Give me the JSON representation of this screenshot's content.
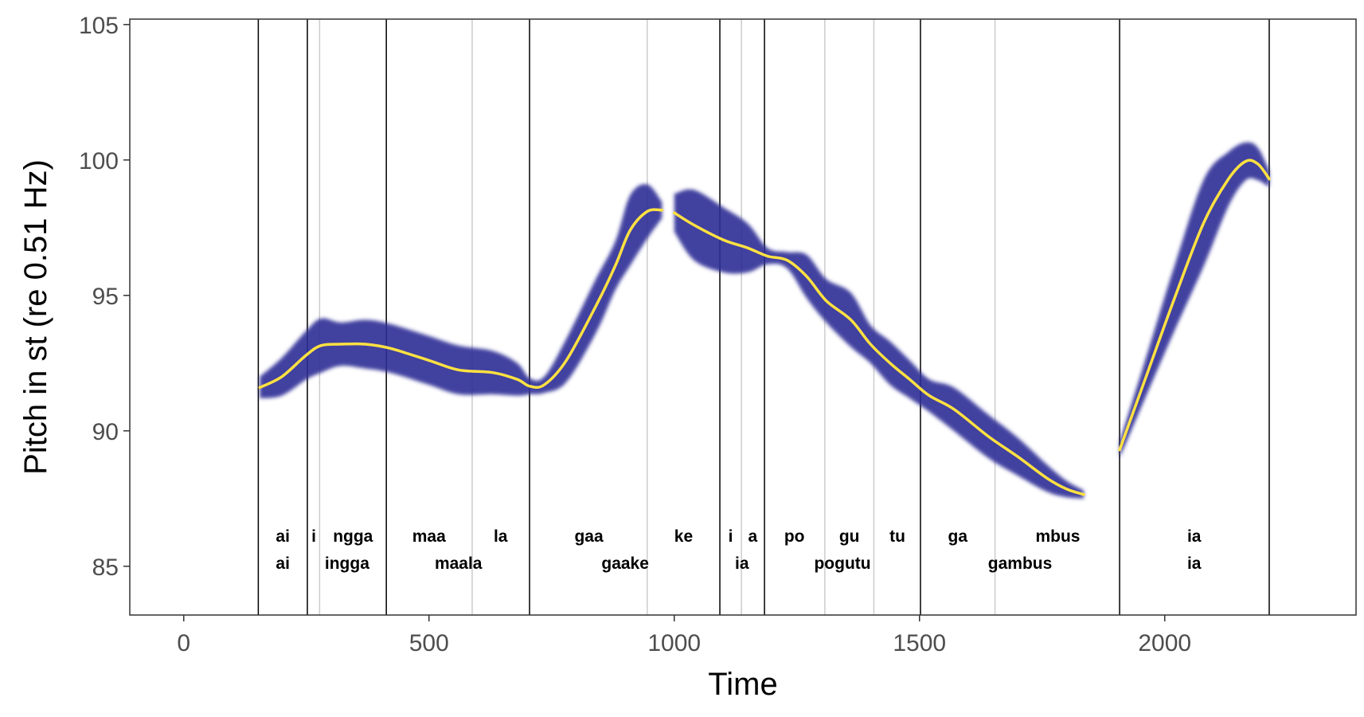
{
  "chart_data": {
    "type": "line",
    "title": "",
    "xlabel": "Time",
    "ylabel": "Pitch in st (re 0.51 Hz)",
    "xlim": [
      -110,
      2390
    ],
    "ylim": [
      83.2,
      105.2
    ],
    "xticks": [
      0,
      500,
      1000,
      1500,
      2000
    ],
    "yticks": [
      85,
      90,
      95,
      100,
      105
    ],
    "grid": false,
    "legend": "none",
    "colors": {
      "band": "#2f2f96",
      "line": "#ffe141",
      "boundary": "#000000",
      "sub_boundary": "#cccccc",
      "panel_border": "#333333"
    },
    "word_boundaries": [
      152,
      252,
      413,
      705,
      1093,
      1184,
      1502,
      1908,
      2213
    ],
    "syllable_boundaries": [
      277,
      588,
      945,
      1137,
      1307,
      1407,
      1654
    ],
    "syllables": [
      {
        "text": "ai",
        "x": 202
      },
      {
        "text": "i",
        "x": 265
      },
      {
        "text": "ngga",
        "x": 345
      },
      {
        "text": "maa",
        "x": 500
      },
      {
        "text": "la",
        "x": 646
      },
      {
        "text": "gaa",
        "x": 826
      },
      {
        "text": "ke",
        "x": 1019
      },
      {
        "text": "i",
        "x": 1115
      },
      {
        "text": "a",
        "x": 1160
      },
      {
        "text": "po",
        "x": 1245
      },
      {
        "text": "gu",
        "x": 1357
      },
      {
        "text": "tu",
        "x": 1455
      },
      {
        "text": "ga",
        "x": 1578
      },
      {
        "text": "mbus",
        "x": 1782
      },
      {
        "text": "ia",
        "x": 2060
      }
    ],
    "words": [
      {
        "text": "ai",
        "x": 202
      },
      {
        "text": "ingga",
        "x": 333
      },
      {
        "text": "maala",
        "x": 560
      },
      {
        "text": "gaake",
        "x": 900
      },
      {
        "text": "ia",
        "x": 1138
      },
      {
        "text": "pogutu",
        "x": 1343
      },
      {
        "text": "gambus",
        "x": 1705
      },
      {
        "text": "ia",
        "x": 2060
      }
    ],
    "series": [
      {
        "values": [
          {
            "x": 155,
            "y": 91.6,
            "w": 0.4
          },
          {
            "x": 200,
            "y": 92.0,
            "w": 0.7
          },
          {
            "x": 250,
            "y": 92.8,
            "w": 0.9
          },
          {
            "x": 280,
            "y": 93.15,
            "w": 1.0
          },
          {
            "x": 320,
            "y": 93.2,
            "w": 0.8
          },
          {
            "x": 370,
            "y": 93.2,
            "w": 0.9
          },
          {
            "x": 420,
            "y": 93.05,
            "w": 0.9
          },
          {
            "x": 500,
            "y": 92.6,
            "w": 0.9
          },
          {
            "x": 560,
            "y": 92.25,
            "w": 0.9
          },
          {
            "x": 630,
            "y": 92.15,
            "w": 0.8
          },
          {
            "x": 680,
            "y": 91.9,
            "w": 0.6
          },
          {
            "x": 705,
            "y": 91.65,
            "w": 0.3
          },
          {
            "x": 735,
            "y": 91.7,
            "w": 0.3
          },
          {
            "x": 780,
            "y": 92.6,
            "w": 0.8
          },
          {
            "x": 840,
            "y": 94.6,
            "w": 1.0
          },
          {
            "x": 880,
            "y": 96.1,
            "w": 0.9
          },
          {
            "x": 910,
            "y": 97.4,
            "w": 1.3
          },
          {
            "x": 945,
            "y": 98.1,
            "w": 1.0
          },
          {
            "x": 975,
            "y": 98.15,
            "w": 0.3
          }
        ]
      },
      {
        "values": [
          {
            "x": 1000,
            "y": 98.05,
            "w": 0.7
          },
          {
            "x": 1040,
            "y": 97.6,
            "w": 1.3
          },
          {
            "x": 1100,
            "y": 97.05,
            "w": 1.2
          },
          {
            "x": 1150,
            "y": 96.75,
            "w": 0.9
          },
          {
            "x": 1190,
            "y": 96.45,
            "w": 0.3
          },
          {
            "x": 1230,
            "y": 96.3,
            "w": 0.3
          },
          {
            "x": 1270,
            "y": 95.7,
            "w": 0.8
          },
          {
            "x": 1310,
            "y": 94.8,
            "w": 0.8
          },
          {
            "x": 1360,
            "y": 94.1,
            "w": 1.0
          },
          {
            "x": 1400,
            "y": 93.2,
            "w": 0.7
          },
          {
            "x": 1440,
            "y": 92.5,
            "w": 0.8
          },
          {
            "x": 1480,
            "y": 91.9,
            "w": 0.7
          },
          {
            "x": 1520,
            "y": 91.3,
            "w": 0.6
          },
          {
            "x": 1570,
            "y": 90.8,
            "w": 0.8
          },
          {
            "x": 1640,
            "y": 89.8,
            "w": 0.8
          },
          {
            "x": 1700,
            "y": 89.05,
            "w": 0.7
          },
          {
            "x": 1760,
            "y": 88.25,
            "w": 0.5
          },
          {
            "x": 1800,
            "y": 87.85,
            "w": 0.3
          },
          {
            "x": 1835,
            "y": 87.65,
            "w": 0.15
          }
        ]
      },
      {
        "values": [
          {
            "x": 1908,
            "y": 89.3,
            "w": 0.3
          },
          {
            "x": 1960,
            "y": 91.9,
            "w": 0.7
          },
          {
            "x": 2020,
            "y": 94.9,
            "w": 1.2
          },
          {
            "x": 2080,
            "y": 97.7,
            "w": 1.6
          },
          {
            "x": 2130,
            "y": 99.3,
            "w": 1.0
          },
          {
            "x": 2165,
            "y": 99.95,
            "w": 0.7
          },
          {
            "x": 2190,
            "y": 99.85,
            "w": 0.6
          },
          {
            "x": 2213,
            "y": 99.3,
            "w": 0.3
          }
        ]
      }
    ]
  }
}
